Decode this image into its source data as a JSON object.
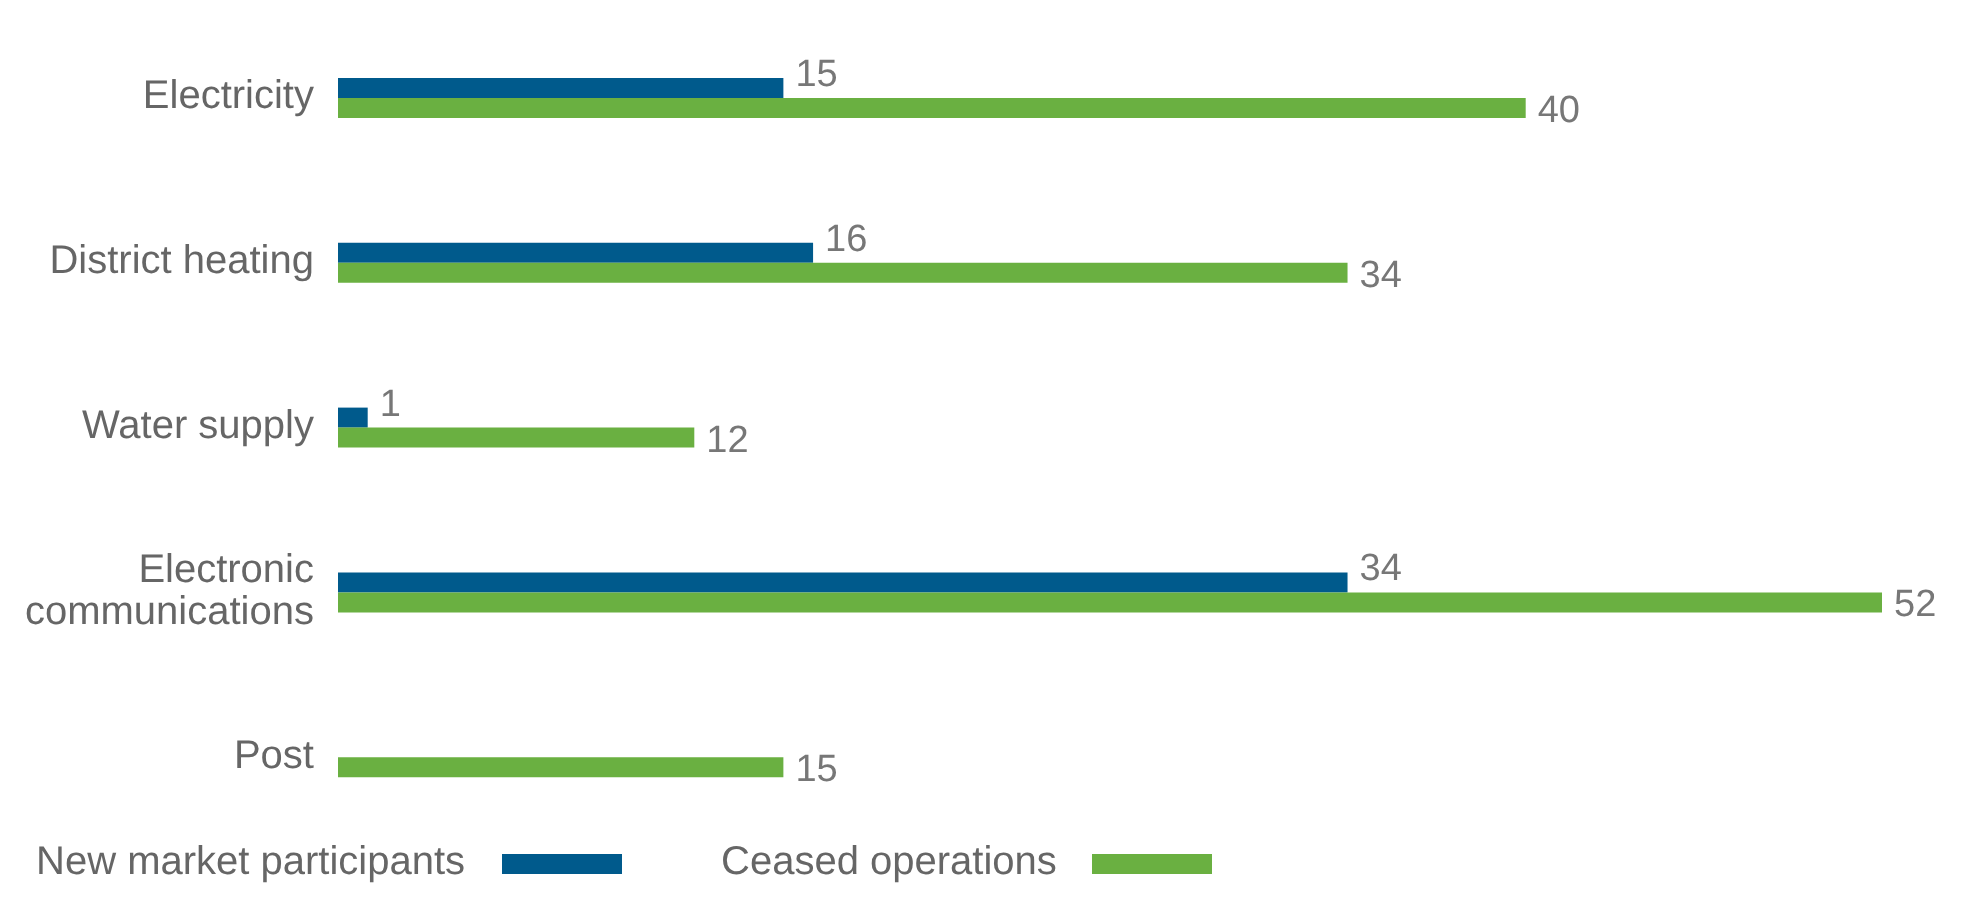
{
  "chart_data": {
    "type": "bar",
    "orientation": "horizontal",
    "categories": [
      "Electricity",
      "District heating",
      "Water supply",
      "Electronic communications",
      "Post"
    ],
    "series": [
      {
        "name": "New market participants",
        "color": "#005a8c",
        "values": [
          15,
          16,
          1,
          34,
          null
        ]
      },
      {
        "name": "Ceased operations",
        "color": "#6ab041",
        "values": [
          40,
          34,
          12,
          52,
          15
        ]
      }
    ],
    "xlim": [
      0,
      52
    ],
    "data_labels": true,
    "legend": "bottom",
    "grid": false
  }
}
